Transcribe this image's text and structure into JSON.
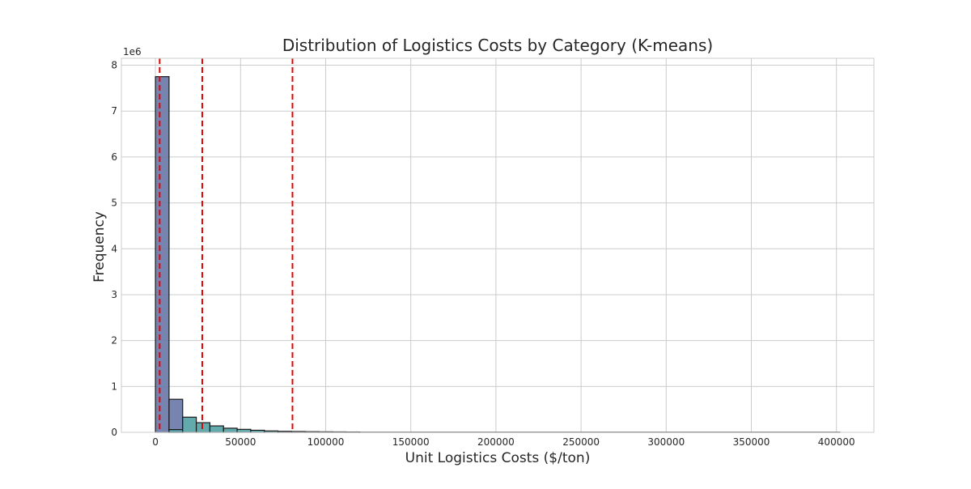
{
  "chart_data": {
    "type": "bar",
    "title": "Distribution of Logistics Costs by Category (K-means)",
    "xlabel": "Unit Logistics Costs ($/ton)",
    "ylabel": "Frequency",
    "y_offset_label": "1e6",
    "xlim": [
      -20000,
      422000
    ],
    "ylim": [
      0,
      8.15
    ],
    "grid": true,
    "x_ticks": [
      0,
      50000,
      100000,
      150000,
      200000,
      250000,
      300000,
      350000,
      400000
    ],
    "x_tick_labels": [
      "0",
      "50000",
      "100000",
      "150000",
      "200000",
      "250000",
      "300000",
      "350000",
      "400000"
    ],
    "y_ticks": [
      0,
      1,
      2,
      3,
      4,
      5,
      6,
      7,
      8
    ],
    "y_tick_labels": [
      "0",
      "1",
      "2",
      "3",
      "4",
      "5",
      "6",
      "7",
      "8"
    ],
    "bin_width": 8000,
    "series": [
      {
        "color": "#6a7aa8",
        "bins": [
          {
            "x0": 0,
            "x1": 8000,
            "value": 7.75
          },
          {
            "x0": 8000,
            "x1": 16000,
            "value": 0.72
          }
        ]
      },
      {
        "color": "#56a3a6",
        "bins": [
          {
            "x0": 8000,
            "x1": 16000,
            "value": 0.06
          },
          {
            "x0": 16000,
            "x1": 24000,
            "value": 0.33
          },
          {
            "x0": 24000,
            "x1": 32000,
            "value": 0.21
          },
          {
            "x0": 32000,
            "x1": 40000,
            "value": 0.14
          },
          {
            "x0": 40000,
            "x1": 48000,
            "value": 0.09
          },
          {
            "x0": 48000,
            "x1": 56000,
            "value": 0.065
          },
          {
            "x0": 56000,
            "x1": 64000,
            "value": 0.045
          },
          {
            "x0": 64000,
            "x1": 72000,
            "value": 0.03
          },
          {
            "x0": 72000,
            "x1": 80000,
            "value": 0.022
          }
        ]
      },
      {
        "color": "#4a8a5c",
        "bins": [
          {
            "x0": 80000,
            "x1": 88000,
            "value": 0.018
          },
          {
            "x0": 88000,
            "x1": 96000,
            "value": 0.014
          },
          {
            "x0": 96000,
            "x1": 104000,
            "value": 0.011
          },
          {
            "x0": 104000,
            "x1": 112000,
            "value": 0.009
          },
          {
            "x0": 112000,
            "x1": 120000,
            "value": 0.007
          }
        ]
      },
      {
        "color": "#3f5f3f",
        "bins": [
          {
            "x0": 120000,
            "x1": 402000,
            "value": 0.004
          }
        ]
      }
    ],
    "thresholds": [
      2500,
      27500,
      80500
    ],
    "threshold_color": "#e60000"
  }
}
